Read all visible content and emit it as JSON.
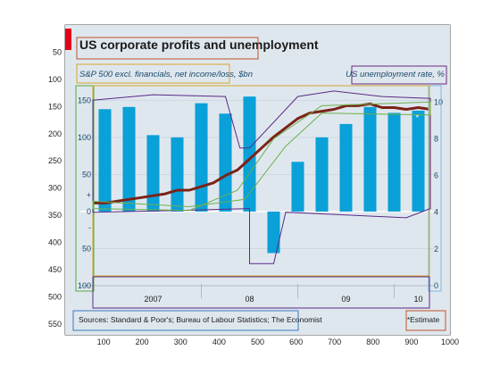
{
  "chart_data": {
    "type": "bar",
    "title": "US corporate profits and unemployment",
    "left_axis_label": "S&P 500 excl. financials, net income/loss, $bn",
    "right_axis_label": "US unemployment rate, %",
    "left_ticks": [
      "150",
      "100",
      "50",
      "+",
      "0",
      "-",
      "50",
      "100"
    ],
    "right_ticks": [
      "10",
      "8",
      "6",
      "4",
      "2",
      "0"
    ],
    "year_labels": [
      "2007",
      "08",
      "09",
      "10"
    ],
    "source": "Sources: Standard & Poor's; Bureau of Labour Statistics; The Economist",
    "footnote": "*Estimate",
    "estimate_marker": "*",
    "ylim_left": [
      -100,
      160
    ],
    "ylim_right": [
      0,
      10.5
    ],
    "series": [
      {
        "name": "S&P 500 excl. financials, net income/loss, $bn",
        "kind": "bar",
        "color": "#0aa0d8",
        "x": [
          1,
          2,
          3,
          4,
          5,
          6,
          7,
          8,
          9,
          10,
          11,
          12,
          13,
          14
        ],
        "values": [
          138,
          141,
          103,
          100,
          146,
          132,
          155,
          -56,
          67,
          100,
          118,
          141,
          133,
          136
        ]
      },
      {
        "name": "US unemployment rate, %",
        "kind": "line",
        "color": "#7a2318",
        "x": [
          0.5,
          1.0,
          1.5,
          2.0,
          2.5,
          3.0,
          3.5,
          4.0,
          4.5,
          5.0,
          5.5,
          6.0,
          6.5,
          7.0,
          7.5,
          8.0,
          8.5,
          9.0,
          9.5,
          10.0,
          10.5,
          11.0,
          11.5,
          12.0,
          12.5,
          13.0,
          13.5,
          14.0,
          14.5
        ],
        "values": [
          4.5,
          4.5,
          4.6,
          4.7,
          4.8,
          4.9,
          5.0,
          5.2,
          5.2,
          5.4,
          5.6,
          6.0,
          6.3,
          6.9,
          7.5,
          8.1,
          8.6,
          9.1,
          9.4,
          9.5,
          9.6,
          9.8,
          9.8,
          9.9,
          9.7,
          9.7,
          9.6,
          9.7,
          9.6
        ]
      }
    ]
  },
  "annotation_axes": {
    "x_ticks": [
      "100",
      "200",
      "300",
      "400",
      "500",
      "600",
      "700",
      "800",
      "900",
      "1000"
    ],
    "y_ticks": [
      "50",
      "100",
      "150",
      "200",
      "250",
      "300",
      "350",
      "400",
      "450",
      "500",
      "550"
    ]
  },
  "colors": {
    "panel": "#dfe7ee",
    "bar": "#0aa0d8",
    "line": "#7a2318",
    "accent_red": "#e3001b",
    "box_title": "#c0502a",
    "box_left_label": "#d4a72c",
    "box_right_label": "#6b2a86",
    "box_source": "#3a7ac0",
    "box_right_axis": "#7fb8e0",
    "box_left_axis": "#5aaa3a",
    "box_plot": "#5a2a86",
    "box_bar": "#6ab04c"
  }
}
